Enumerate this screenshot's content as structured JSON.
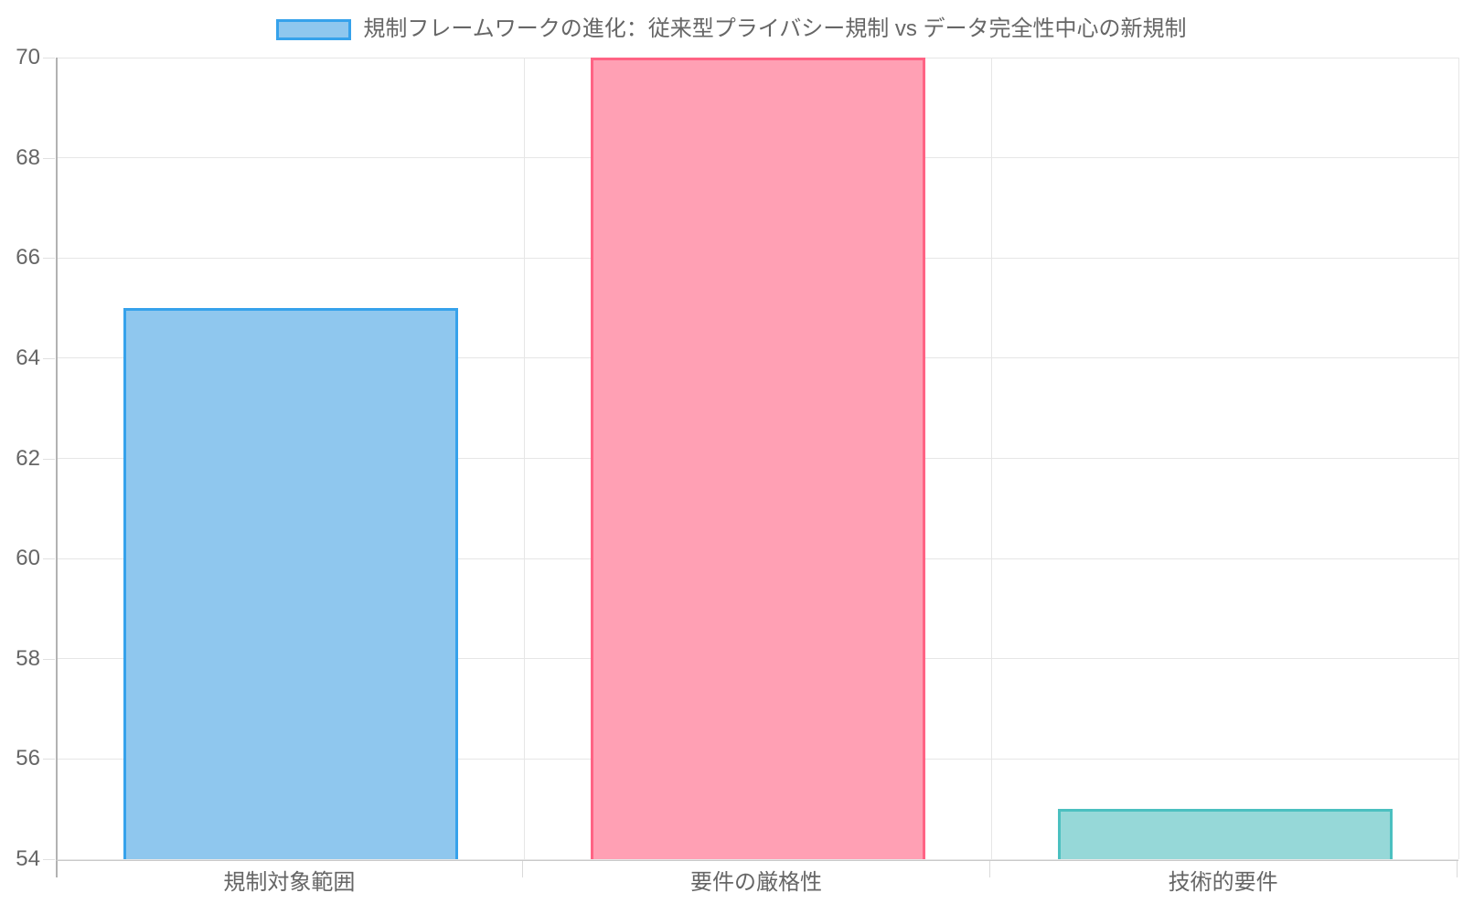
{
  "chart_data": {
    "type": "bar",
    "title": "規制フレームワークの進化：従来型プライバシー規制 vs データ完全性中心の新規制",
    "legend": {
      "position": "top",
      "label": "規制フレームワークの進化：従来型プライバシー規制 vs データ完全性中心の新規制",
      "swatch_fill": "#8FC7EE",
      "swatch_border": "#36A2EB"
    },
    "categories": [
      "規制対象範囲",
      "要件の厳格性",
      "技術的要件"
    ],
    "values": [
      65,
      70,
      55
    ],
    "bar_colors": [
      {
        "fill": "#8FC7EE",
        "border": "#36A2EB"
      },
      {
        "fill": "#FFA0B4",
        "border": "#FF6384"
      },
      {
        "fill": "#96D8D8",
        "border": "#4BC0C0"
      }
    ],
    "xlabel": "",
    "ylabel": "",
    "ylim": [
      54,
      70
    ],
    "y_ticks": [
      54,
      56,
      58,
      60,
      62,
      64,
      66,
      68,
      70
    ],
    "grid": true,
    "background_color": "#FFFFFF",
    "text_color": "#666666",
    "grid_color": "#E6E6E6",
    "y_axis_line_color": "#B2B2B2",
    "x_axis_line_color": "#C9C9C9"
  }
}
